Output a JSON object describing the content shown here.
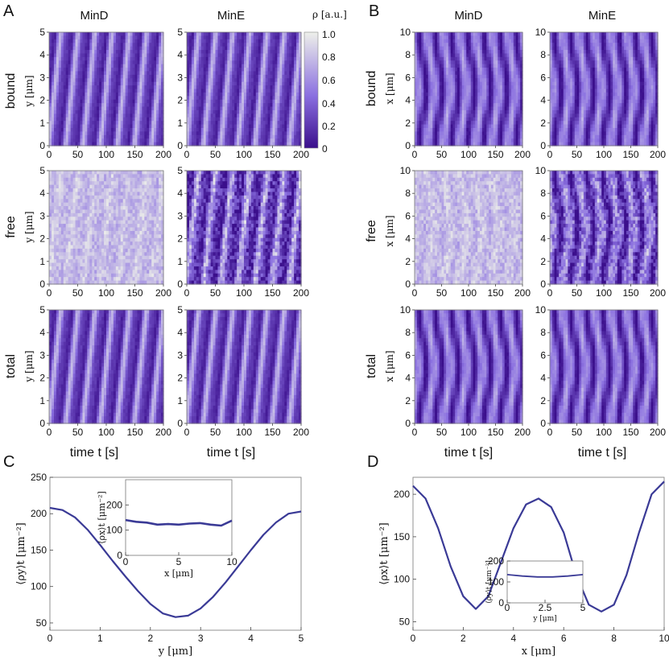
{
  "colors": {
    "low": "#3b0f8c",
    "mid": "#8a6fe0",
    "high": "#eef0ea",
    "curve": "#3a3a96",
    "frame": "#666666"
  },
  "panels": {
    "A": {
      "tag": "A",
      "columns": [
        "MinD",
        "MinE"
      ],
      "rows": [
        "bound",
        "free",
        "total"
      ],
      "ylabel": "y [μm]",
      "xlabel": "time  t [s]",
      "xticks": [
        "0",
        "50",
        "100",
        "150",
        "200"
      ],
      "yticks": [
        "0",
        "1",
        "2",
        "3",
        "4",
        "5"
      ]
    },
    "B": {
      "tag": "B",
      "columns": [
        "MinD",
        "MinE"
      ],
      "rows": [
        "bound",
        "free",
        "total"
      ],
      "ylabel": "x [μm]",
      "xlabel": "time  t [s]",
      "xticks": [
        "0",
        "50",
        "100",
        "150",
        "200"
      ],
      "yticks": [
        "0",
        "2",
        "4",
        "6",
        "8",
        "10"
      ]
    },
    "colorbar": {
      "label": "ρ [a.u.]",
      "ticks": [
        "1.0",
        "0.8",
        "0.6",
        "0.4",
        "0.2",
        "0"
      ]
    },
    "C": {
      "tag": "C"
    },
    "D": {
      "tag": "D"
    }
  },
  "chart_data": [
    {
      "type": "heatmap",
      "panel": "A",
      "columns": [
        "MinD",
        "MinE"
      ],
      "rows": [
        "bound",
        "free",
        "total"
      ],
      "xlabel": "time  t [s]",
      "ylabel": "y [μm]",
      "xlim": [
        0,
        200
      ],
      "ylim": [
        0,
        5
      ],
      "period_s": 30,
      "colorbar": {
        "label": "ρ [a.u.]",
        "range": [
          0,
          1
        ]
      }
    },
    {
      "type": "heatmap",
      "panel": "B",
      "columns": [
        "MinD",
        "MinE"
      ],
      "rows": [
        "bound",
        "free",
        "total"
      ],
      "xlabel": "time  t [s]",
      "ylabel": "x [μm]",
      "xlim": [
        0,
        200
      ],
      "ylim": [
        0,
        10
      ],
      "period_s": 30
    },
    {
      "type": "line",
      "panel": "C",
      "xlabel": "y [μm]",
      "ylabel": "⟨ρy⟩t  [μm⁻²]",
      "xlim": [
        0,
        5
      ],
      "ylim": [
        40,
        250
      ],
      "xticks": [
        "0",
        "1",
        "2",
        "3",
        "4",
        "5"
      ],
      "yticks": [
        "50",
        "100",
        "150",
        "200",
        "250"
      ],
      "x": [
        0,
        0.25,
        0.5,
        0.75,
        1.0,
        1.25,
        1.5,
        1.75,
        2.0,
        2.25,
        2.5,
        2.75,
        3.0,
        3.25,
        3.5,
        3.75,
        4.0,
        4.25,
        4.5,
        4.75,
        5.0
      ],
      "y": [
        208,
        205,
        195,
        178,
        157,
        135,
        114,
        94,
        76,
        63,
        58,
        60,
        70,
        86,
        106,
        128,
        150,
        171,
        188,
        200,
        203
      ],
      "inset": {
        "type": "line",
        "xlabel": "x [μm]",
        "ylabel": "⟨ρx⟩t  [μm⁻²]",
        "xlim": [
          0,
          10
        ],
        "ylim": [
          0,
          300
        ],
        "xticks": [
          "0",
          "5",
          "10"
        ],
        "yticks": [
          "0",
          "100",
          "200"
        ],
        "x": [
          0,
          1,
          2,
          3,
          4,
          5,
          6,
          7,
          8,
          9,
          10
        ],
        "y": [
          140,
          133,
          130,
          122,
          124,
          122,
          126,
          128,
          122,
          118,
          138
        ]
      }
    },
    {
      "type": "line",
      "panel": "D",
      "xlabel": "x [μm]",
      "ylabel": "⟨ρx⟩t  [μm⁻²]",
      "xlim": [
        0,
        10
      ],
      "ylim": [
        40,
        220
      ],
      "xticks": [
        "0",
        "2",
        "4",
        "6",
        "8",
        "10"
      ],
      "yticks": [
        "50",
        "100",
        "150",
        "200"
      ],
      "x": [
        0,
        0.5,
        1.0,
        1.5,
        2.0,
        2.5,
        3.0,
        3.5,
        4.0,
        4.5,
        5.0,
        5.5,
        6.0,
        6.5,
        7.0,
        7.5,
        8.0,
        8.5,
        9.0,
        9.5,
        10.0
      ],
      "y": [
        210,
        195,
        160,
        115,
        80,
        65,
        80,
        120,
        160,
        188,
        195,
        185,
        155,
        105,
        70,
        62,
        70,
        105,
        155,
        200,
        215
      ],
      "inset": {
        "type": "line",
        "xlabel": "y [μm]",
        "ylabel": "⟨ρy⟩t  [μm⁻²]",
        "xlim": [
          0,
          5
        ],
        "ylim": [
          0,
          200
        ],
        "xticks": [
          "0",
          "2.5",
          "5"
        ],
        "yticks": [
          "0",
          "100",
          "200"
        ],
        "x": [
          0,
          1,
          2,
          3,
          4,
          5
        ],
        "y": [
          135,
          128,
          124,
          124,
          128,
          135
        ]
      }
    }
  ]
}
